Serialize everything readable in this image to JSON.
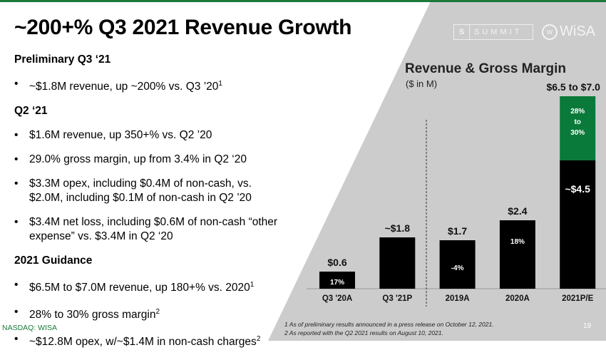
{
  "title": "~200+% Q3 2021 Revenue Growth",
  "logos": {
    "summit": "SUMMIT",
    "wisa": "WiSA"
  },
  "left": {
    "h1": "Preliminary Q3 ‘21",
    "b1": "~$1.8M revenue, up ~200% vs. Q3 ’20",
    "b1s": "1",
    "h2": "Q2 ‘21",
    "b2": "$1.6M revenue, up 350+% vs. Q2 ’20",
    "b3": "29.0% gross margin, up from 3.4% in Q2 ‘20",
    "b4": "$3.3M opex, including $0.4M of non-cash, vs. $2.0M, including $0.1M of non-cash in Q2 ’20",
    "b5": "$3.4M net loss, including $0.6M of non-cash “other expense” vs. $3.4M in Q2 ‘20",
    "h3": "2021 Guidance",
    "b6": "$6.5M to $7.0M revenue, up 180+% vs. 2020",
    "b6s": "1",
    "b7": "28% to 30% gross margin",
    "b7s": "2",
    "b8": "~$12.8M opex, w/~$1.4M in non-cash charges",
    "b8s": "2"
  },
  "nasdaq": "NASDAQ: WISA",
  "footnotes": [
    "1 As of preliminary results announced in a press release on October 12, 2021.",
    "2 As reported with the Q2 2021 results on August 10, 2021."
  ],
  "page": "19",
  "colors": {
    "bar": "#000000",
    "guidance": "#0a7a3a",
    "panel": "#cccccc",
    "brand": "#1a7a3a"
  },
  "chart_data": {
    "type": "bar",
    "title": "Revenue & Gross Margin",
    "subtitle": "($ in M)",
    "categories": [
      "Q3 '20A",
      "Q3 '21P",
      "2019A",
      "2020A",
      "2021P/E"
    ],
    "values": [
      0.6,
      1.8,
      1.7,
      2.4,
      4.5
    ],
    "stacked_top": [
      0,
      0,
      0,
      0,
      2.25
    ],
    "value_labels": [
      "$0.6",
      "~$1.8",
      "$1.7",
      "$2.4",
      "$6.5 to $7.0"
    ],
    "inner_labels": [
      "17%",
      "",
      "-4%",
      "18%",
      "~$4.5"
    ],
    "top_segment_label": [
      "28%",
      "to",
      "30%"
    ],
    "divider_after": "Q3 '21P",
    "grid": false
  }
}
